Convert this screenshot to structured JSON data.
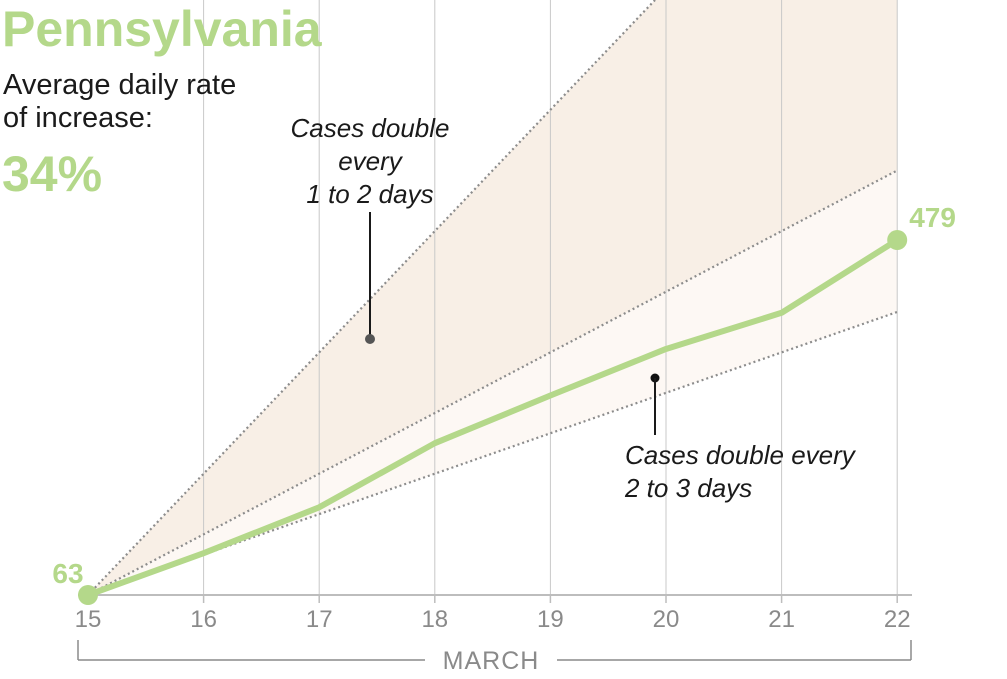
{
  "header": {
    "title": "Pennsylvania",
    "subtitle_line1": "Average daily rate",
    "subtitle_line2": "of increase:",
    "rate": "34%"
  },
  "annotations": {
    "fast_line1": "Cases double",
    "fast_line2": "every",
    "fast_line3": "1 to 2 days",
    "slow_line1": "Cases double every",
    "slow_line2": "2 to 3 days"
  },
  "colors": {
    "accent": "#b4d88a",
    "fast_band": "#f8efe6",
    "slow_band": "#fdf8f4",
    "reference_line": "#8c8c8c",
    "grid": "#c8c8c8"
  },
  "chart_data": {
    "type": "line",
    "x": [
      15,
      16,
      17,
      18,
      19,
      20,
      21,
      22
    ],
    "x_tick_labels": [
      "15",
      "16",
      "17",
      "18",
      "19",
      "20",
      "21",
      "22"
    ],
    "xlabel": "MARCH",
    "series": [
      {
        "values": [
          63,
          80,
          104,
          150,
          197,
          257,
          316,
          479
        ]
      }
    ],
    "reference_lines": [
      {
        "doubling_days": 1
      },
      {
        "doubling_days": 2
      },
      {
        "doubling_days": 3
      }
    ],
    "data_labels": {
      "first": "63",
      "last": "479"
    },
    "grid": "vertical"
  }
}
